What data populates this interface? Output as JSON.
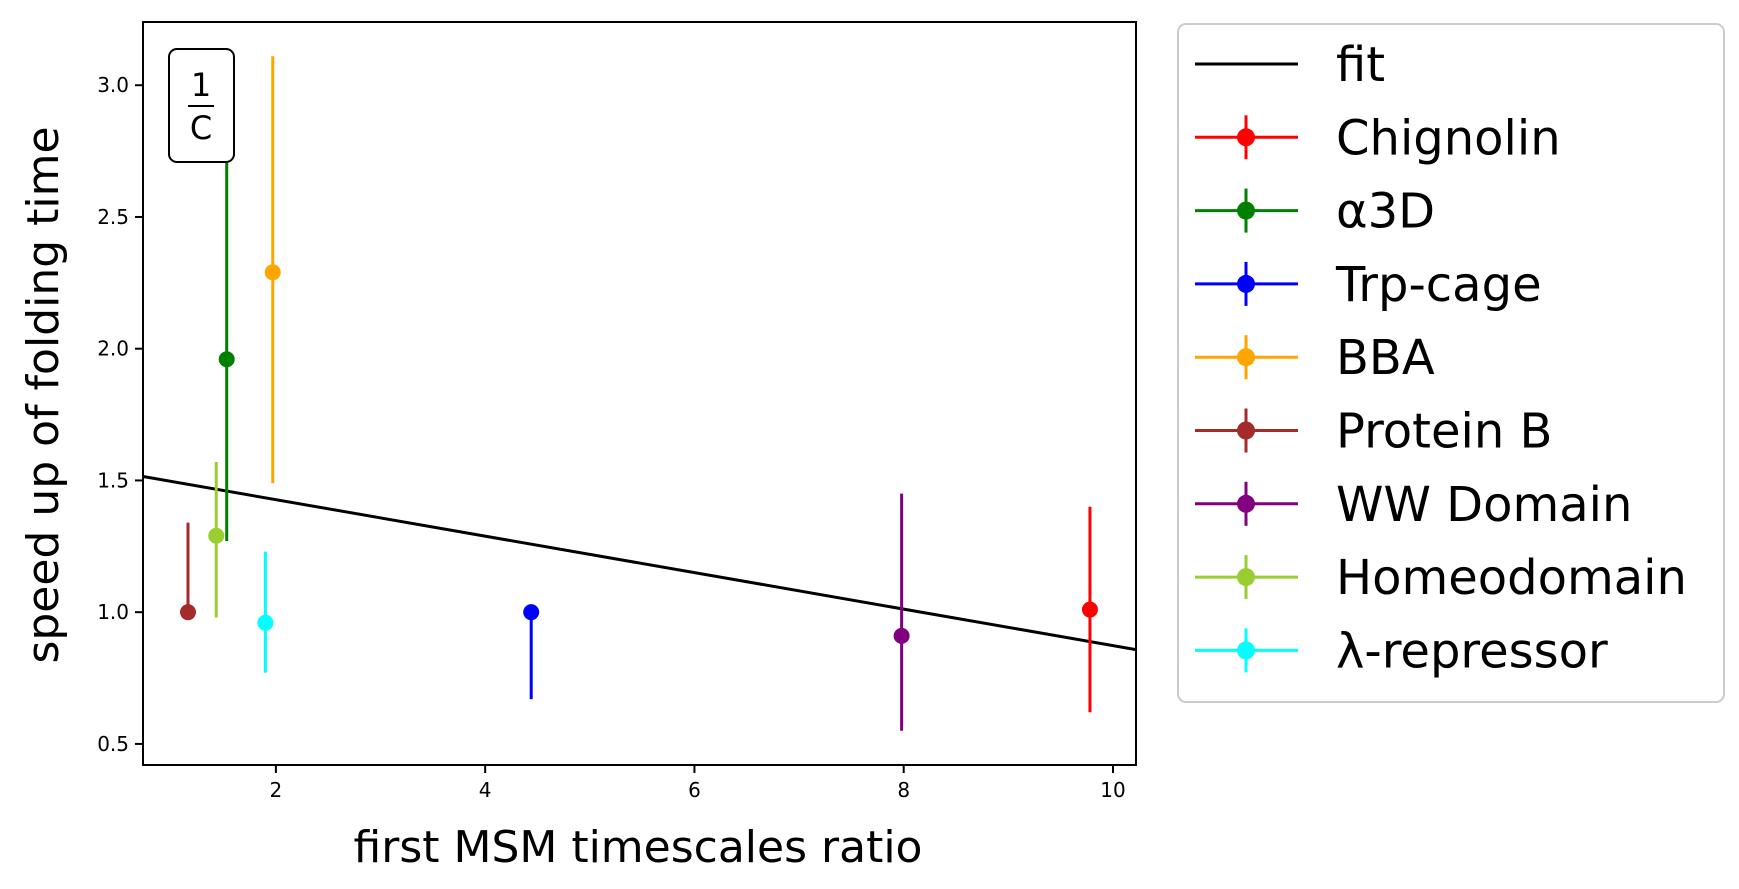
{
  "chart_data": {
    "type": "scatter",
    "xlabel": "first MSM timescales ratio",
    "ylabel": "speed up of folding time",
    "xlim": [
      0.73,
      10.22
    ],
    "ylim": [
      0.42,
      3.24
    ],
    "xticks": [
      2,
      4,
      6,
      8,
      10
    ],
    "yticks": [
      0.5,
      1.0,
      1.5,
      2.0,
      2.5,
      3.0
    ],
    "xtick_labels": [
      "2",
      "4",
      "6",
      "8",
      "10"
    ],
    "ytick_labels": [
      "0.5",
      "1.0",
      "1.5",
      "2.0",
      "2.5",
      "3.0"
    ],
    "grid": false,
    "legend_position": "outside-right",
    "annotation": {
      "numerator": "1",
      "denominator": "C",
      "position": "top-left"
    },
    "fit": {
      "name": "fit",
      "color": "#000000",
      "x": [
        0.73,
        10.22
      ],
      "y": [
        1.515,
        0.858
      ]
    },
    "series": [
      {
        "name": "Chignolin",
        "color": "#ff0000",
        "x": 9.78,
        "y": 1.01,
        "y_low": 0.62,
        "y_high": 1.4
      },
      {
        "name": "α3D",
        "color": "#008000",
        "x": 1.53,
        "y": 1.96,
        "y_low": 1.27,
        "y_high": 2.74
      },
      {
        "name": "Trp-cage",
        "color": "#0000ff",
        "x": 4.44,
        "y": 1.0,
        "y_low": 0.67,
        "y_high": 1.0
      },
      {
        "name": "BBA",
        "color": "#ffa500",
        "x": 1.97,
        "y": 2.29,
        "y_low": 1.49,
        "y_high": 3.11
      },
      {
        "name": "Protein B",
        "color": "#a52a2a",
        "x": 1.16,
        "y": 1.0,
        "y_low": 1.0,
        "y_high": 1.34
      },
      {
        "name": "WW Domain",
        "color": "#800080",
        "x": 7.98,
        "y": 0.91,
        "y_low": 0.55,
        "y_high": 1.45
      },
      {
        "name": "Homeodomain",
        "color": "#9acd32",
        "x": 1.43,
        "y": 1.29,
        "y_low": 0.98,
        "y_high": 1.57
      },
      {
        "name": "λ-repressor",
        "color": "#00ffff",
        "x": 1.9,
        "y": 0.96,
        "y_low": 0.77,
        "y_high": 1.23
      }
    ]
  }
}
